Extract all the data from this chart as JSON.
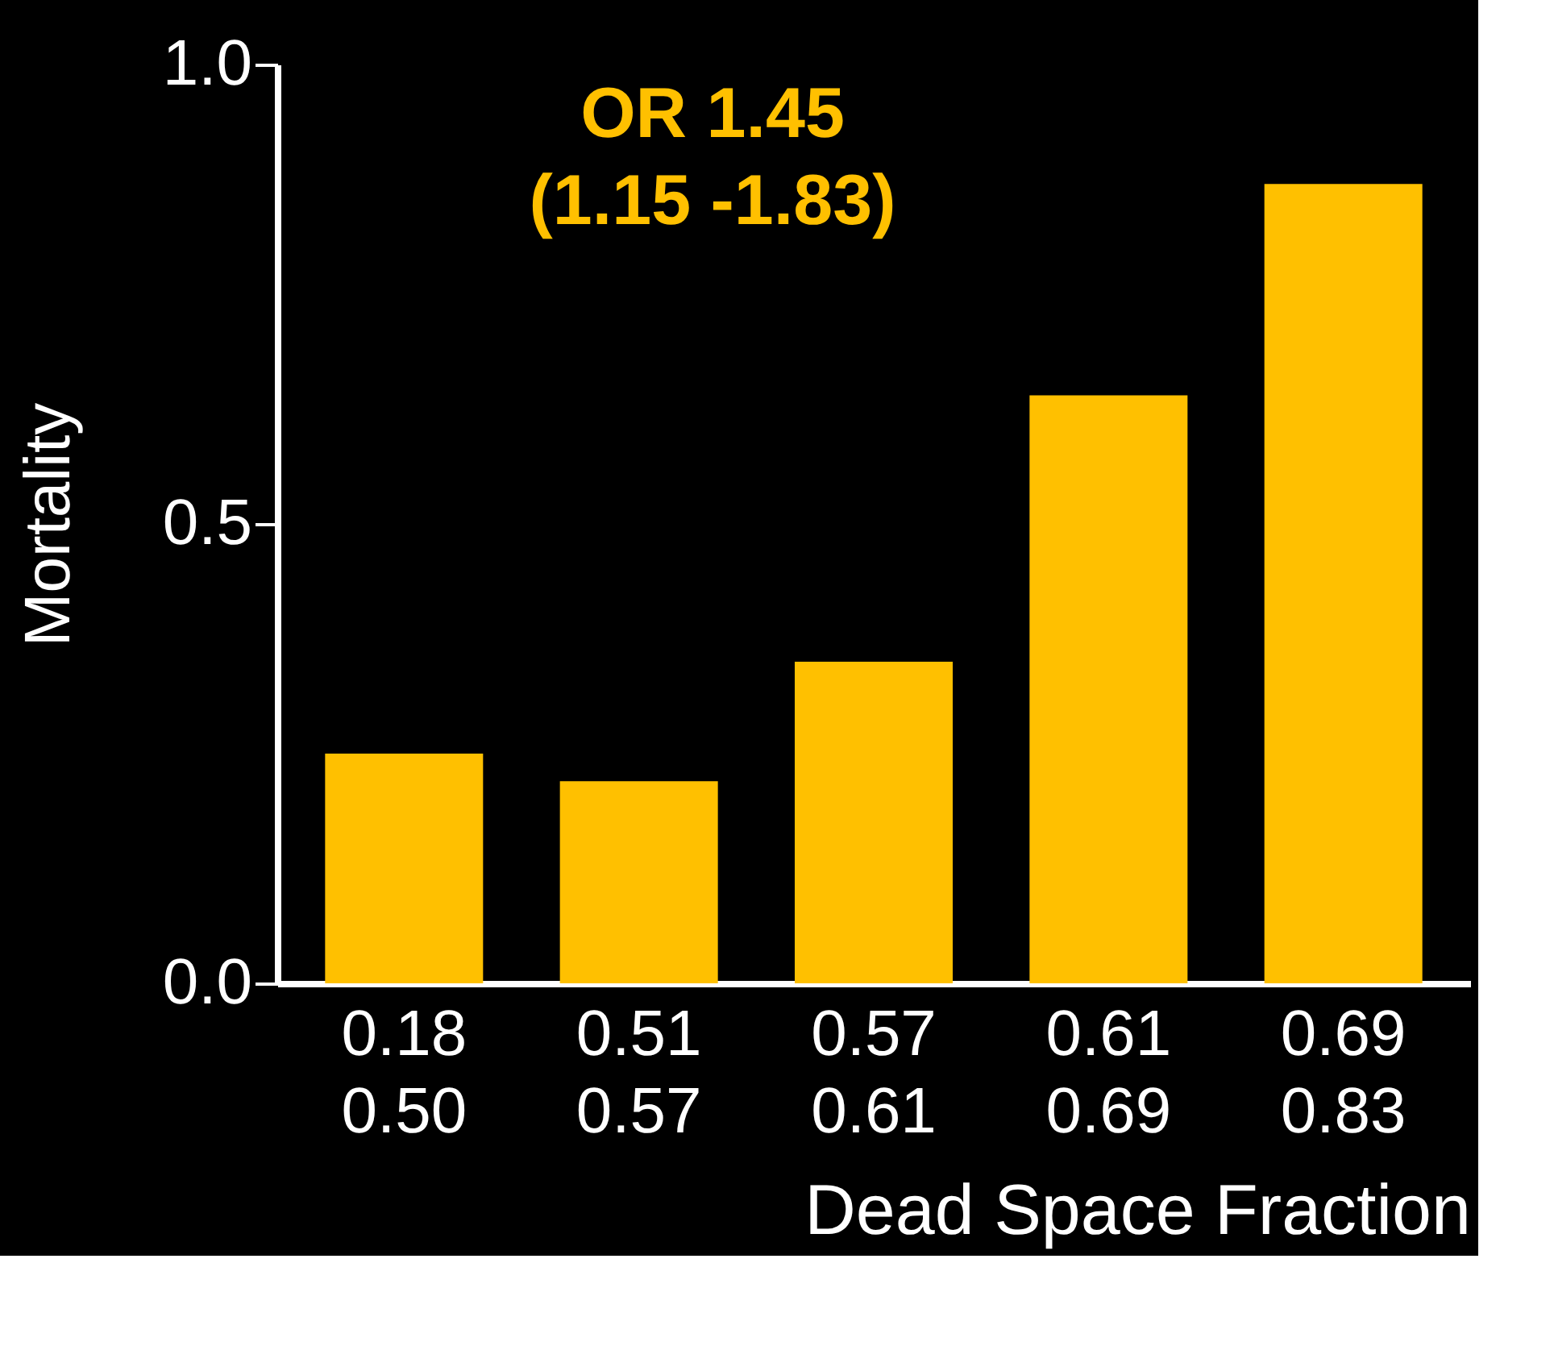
{
  "chart_data": {
    "type": "bar",
    "xlabel": "Dead Space Fraction",
    "ylabel": "Mortality",
    "categories": [
      "0.18\n0.50",
      "0.51\n0.57",
      "0.57\n0.61",
      "0.61\n0.69",
      "0.69\n0.83"
    ],
    "values": [
      0.25,
      0.22,
      0.35,
      0.64,
      0.87
    ],
    "color": "#ffc000",
    "ylim": [
      0,
      1
    ],
    "yticks": [
      {
        "value": 0,
        "label": "0.0"
      },
      {
        "value": 0.5,
        "label": "0.5"
      },
      {
        "value": 1,
        "label": "1.0"
      }
    ],
    "grid": false,
    "annotations": [
      "OR  1.45\n(1.15 -1.83)"
    ]
  }
}
